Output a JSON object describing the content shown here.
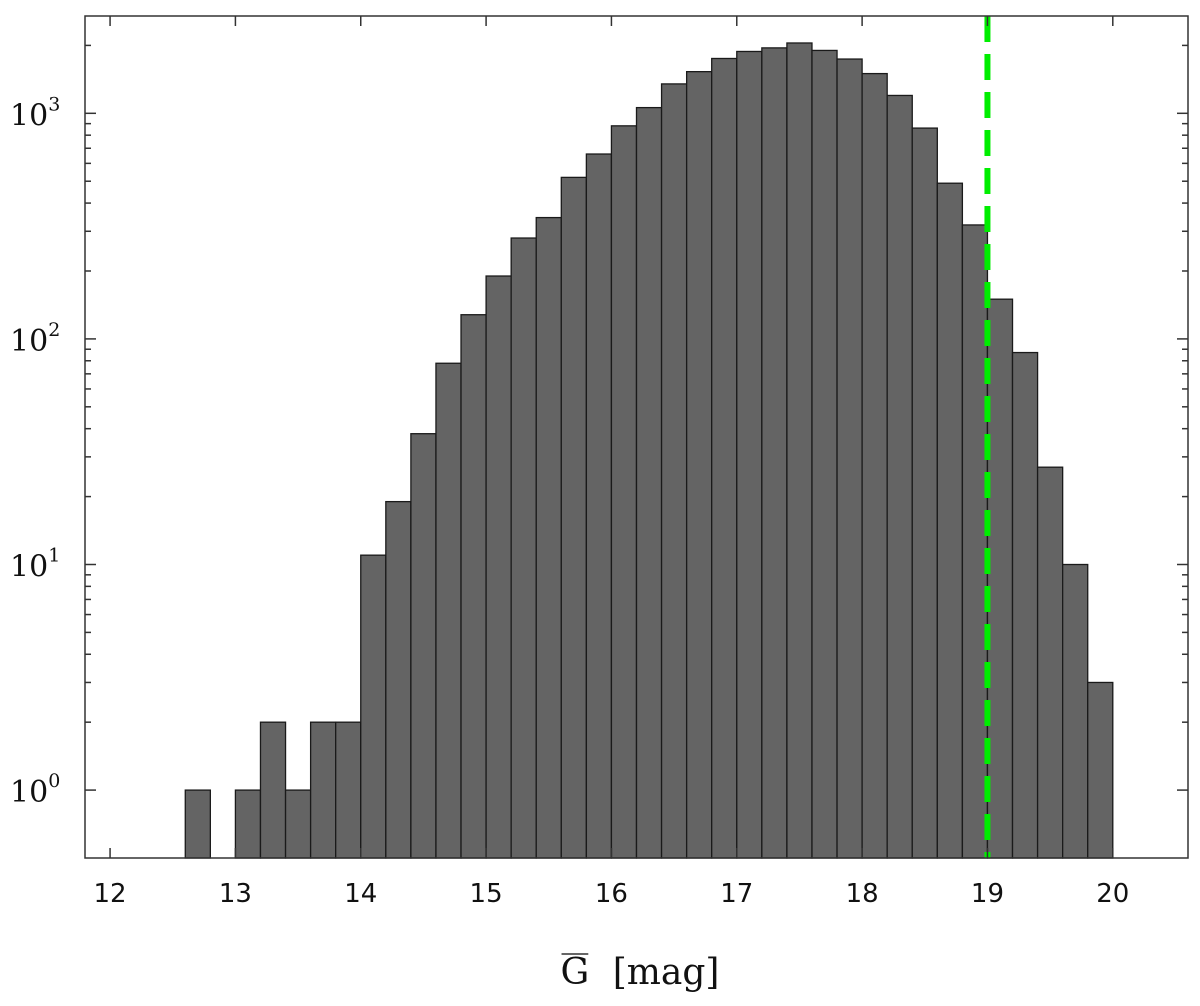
{
  "chart_data": {
    "type": "bar",
    "subtype": "histogram",
    "xlabel_symbol": "G",
    "xlabel_unit": "[mag]",
    "xlim": [
      11.8,
      20.6
    ],
    "ylim": [
      0.5,
      2700
    ],
    "yscale": "log",
    "grid": false,
    "legend": "none",
    "bin_width": 0.2,
    "bins": [
      {
        "x0": 12.6,
        "x1": 12.8,
        "count": 1
      },
      {
        "x0": 13.0,
        "x1": 13.2,
        "count": 1
      },
      {
        "x0": 13.2,
        "x1": 13.4,
        "count": 2
      },
      {
        "x0": 13.4,
        "x1": 13.6,
        "count": 1
      },
      {
        "x0": 13.6,
        "x1": 13.8,
        "count": 2
      },
      {
        "x0": 13.8,
        "x1": 14.0,
        "count": 2
      },
      {
        "x0": 14.0,
        "x1": 14.2,
        "count": 11
      },
      {
        "x0": 14.2,
        "x1": 14.4,
        "count": 19
      },
      {
        "x0": 14.4,
        "x1": 14.6,
        "count": 38
      },
      {
        "x0": 14.6,
        "x1": 14.8,
        "count": 78
      },
      {
        "x0": 14.8,
        "x1": 15.0,
        "count": 128
      },
      {
        "x0": 15.0,
        "x1": 15.2,
        "count": 190
      },
      {
        "x0": 15.2,
        "x1": 15.4,
        "count": 280
      },
      {
        "x0": 15.4,
        "x1": 15.6,
        "count": 345
      },
      {
        "x0": 15.6,
        "x1": 15.8,
        "count": 520
      },
      {
        "x0": 15.8,
        "x1": 16.0,
        "count": 660
      },
      {
        "x0": 16.0,
        "x1": 16.2,
        "count": 880
      },
      {
        "x0": 16.2,
        "x1": 16.4,
        "count": 1060
      },
      {
        "x0": 16.4,
        "x1": 16.6,
        "count": 1350
      },
      {
        "x0": 16.6,
        "x1": 16.8,
        "count": 1530
      },
      {
        "x0": 16.8,
        "x1": 17.0,
        "count": 1750
      },
      {
        "x0": 17.0,
        "x1": 17.2,
        "count": 1880
      },
      {
        "x0": 17.2,
        "x1": 17.4,
        "count": 1950
      },
      {
        "x0": 17.4,
        "x1": 17.6,
        "count": 2050
      },
      {
        "x0": 17.6,
        "x1": 17.8,
        "count": 1900
      },
      {
        "x0": 17.8,
        "x1": 18.0,
        "count": 1740
      },
      {
        "x0": 18.0,
        "x1": 18.2,
        "count": 1500
      },
      {
        "x0": 18.2,
        "x1": 18.4,
        "count": 1200
      },
      {
        "x0": 18.4,
        "x1": 18.6,
        "count": 860
      },
      {
        "x0": 18.6,
        "x1": 18.8,
        "count": 490
      },
      {
        "x0": 18.8,
        "x1": 19.0,
        "count": 320
      },
      {
        "x0": 19.0,
        "x1": 19.2,
        "count": 150
      },
      {
        "x0": 19.2,
        "x1": 19.4,
        "count": 87
      },
      {
        "x0": 19.4,
        "x1": 19.6,
        "count": 27
      },
      {
        "x0": 19.6,
        "x1": 19.8,
        "count": 10
      },
      {
        "x0": 19.8,
        "x1": 20.0,
        "count": 3
      }
    ],
    "xticks": [
      "12",
      "13",
      "14",
      "15",
      "16",
      "17",
      "18",
      "19",
      "20"
    ],
    "yticks": [
      {
        "base": "10",
        "exp": "0",
        "value": 1
      },
      {
        "base": "10",
        "exp": "1",
        "value": 10
      },
      {
        "base": "10",
        "exp": "2",
        "value": 100
      },
      {
        "base": "10",
        "exp": "3",
        "value": 1000
      }
    ],
    "bar_color": "#646464",
    "reference_line": {
      "x": 19.0,
      "color": "#00ee00",
      "style": "dashed"
    }
  }
}
